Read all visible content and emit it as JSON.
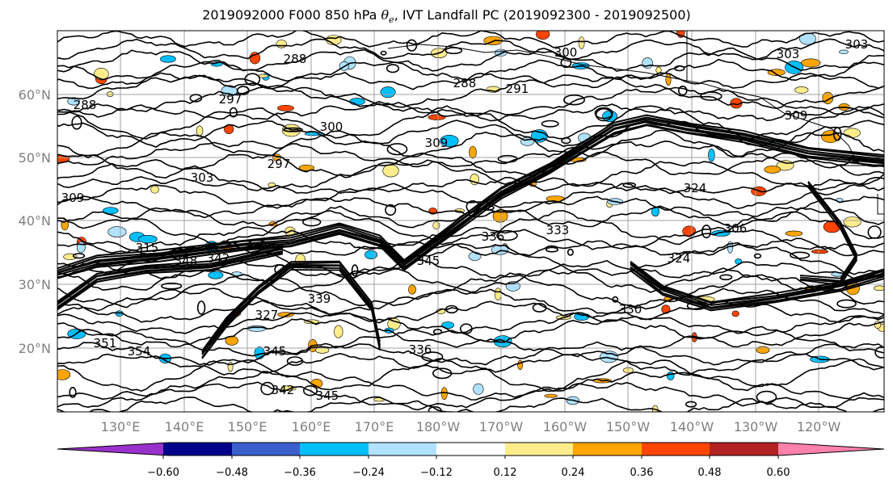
{
  "map": {
    "title_prefix": "2019092000 F000 850 hPa ",
    "title_symbol": "θ",
    "title_subscript": "e",
    "title_suffix": ", IVT Landfall PC (2019092300 - 2019092500)",
    "lat_labels": [
      "60°N",
      "50°N",
      "40°N",
      "30°N",
      "20°N"
    ],
    "lon_labels": [
      "130°E",
      "140°E",
      "150°E",
      "160°E",
      "170°E",
      "180°W",
      "170°W",
      "160°W",
      "150°W",
      "140°W",
      "130°W",
      "120°W"
    ],
    "contour_labels": [
      "288",
      "288",
      "288",
      "297",
      "300",
      "309",
      "303",
      "309",
      "297",
      "291",
      "300",
      "309",
      "315",
      "324",
      "336",
      "333",
      "306",
      "330",
      "336",
      "324",
      "345",
      "351",
      "342",
      "345",
      "354",
      "348",
      "345",
      "342",
      "339",
      "327",
      "303",
      "303"
    ],
    "colors": {
      "land_lines": "#000000",
      "grid": "#a0a0a0",
      "tick_labels": "#808080"
    }
  },
  "colorbar": {
    "ticks": [
      "−0.60",
      "−0.48",
      "−0.36",
      "−0.24",
      "−0.12",
      "0.12",
      "0.24",
      "0.36",
      "0.48",
      "0.60"
    ],
    "colors": [
      "#9932cc",
      "#00008b",
      "#3a5fcd",
      "#00bfff",
      "#b0e2ff",
      "#ffffff",
      "#ffec8b",
      "#ffa500",
      "#ff4500",
      "#b22222",
      "#ff82ab"
    ]
  }
}
